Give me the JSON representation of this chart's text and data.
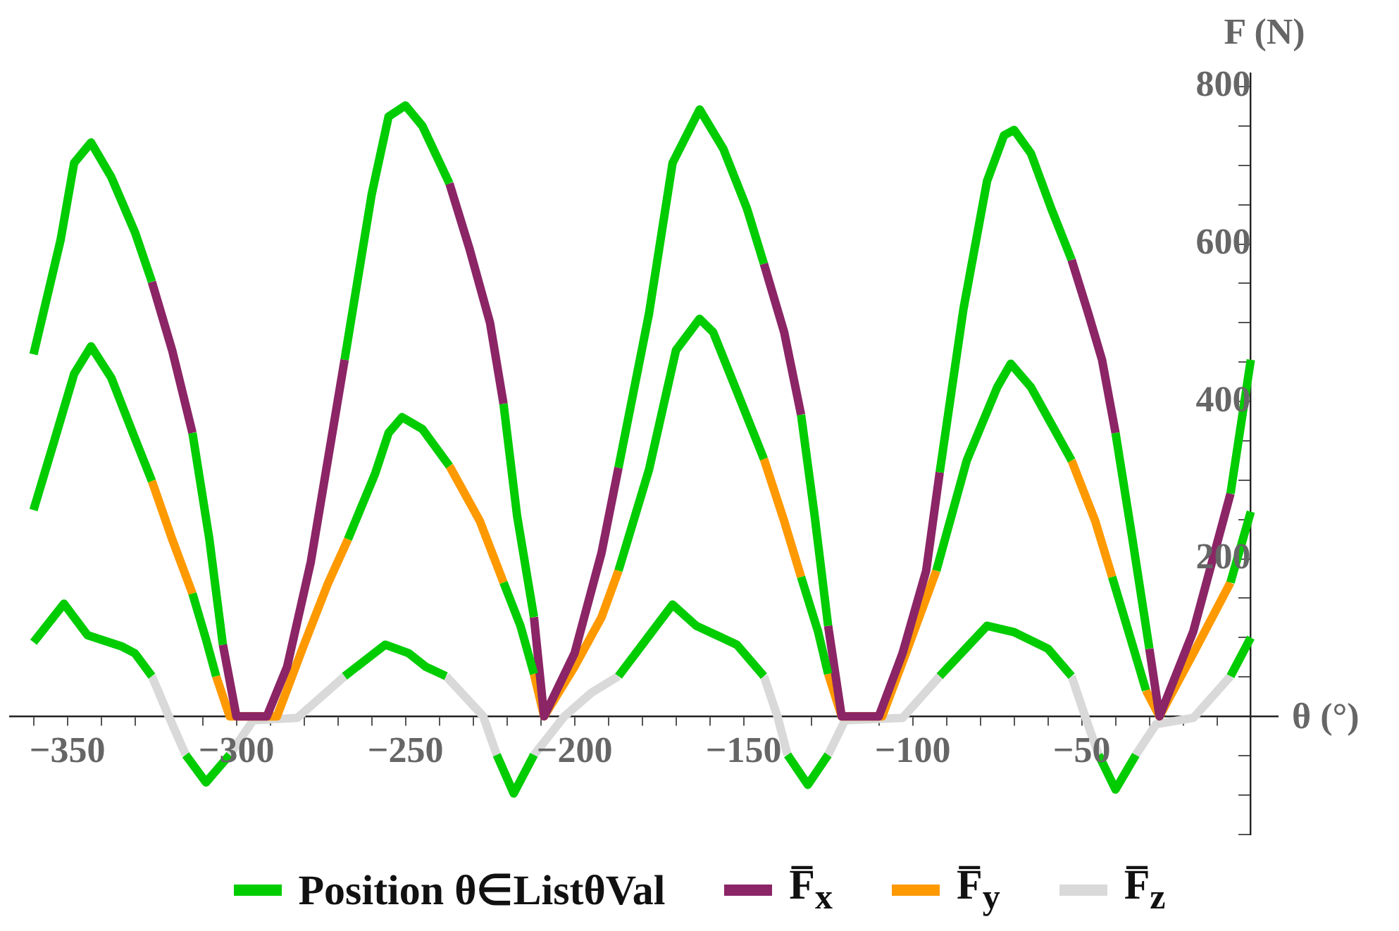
{
  "chart_data": {
    "type": "line",
    "xlabel": "θ (°)",
    "ylabel": "F (N)",
    "legend": "bottom",
    "marker": "none",
    "xlim": [
      -367,
      8
    ],
    "ylim": [
      -150,
      817
    ],
    "xticks": [
      {
        "value": -360,
        "label": null
      },
      {
        "value": -350,
        "label": "−350"
      },
      {
        "value": -340,
        "label": null
      },
      {
        "value": -330,
        "label": null
      },
      {
        "value": -320,
        "label": null
      },
      {
        "value": -310,
        "label": null
      },
      {
        "value": -300,
        "label": "−300"
      },
      {
        "value": -290,
        "label": null
      },
      {
        "value": -280,
        "label": null
      },
      {
        "value": -270,
        "label": null
      },
      {
        "value": -260,
        "label": null
      },
      {
        "value": -250,
        "label": "−250"
      },
      {
        "value": -240,
        "label": null
      },
      {
        "value": -230,
        "label": null
      },
      {
        "value": -220,
        "label": null
      },
      {
        "value": -210,
        "label": null
      },
      {
        "value": -200,
        "label": "−200"
      },
      {
        "value": -190,
        "label": null
      },
      {
        "value": -180,
        "label": null
      },
      {
        "value": -170,
        "label": null
      },
      {
        "value": -160,
        "label": null
      },
      {
        "value": -150,
        "label": "−150"
      },
      {
        "value": -140,
        "label": null
      },
      {
        "value": -130,
        "label": null
      },
      {
        "value": -120,
        "label": null
      },
      {
        "value": -110,
        "label": null
      },
      {
        "value": -100,
        "label": "−100"
      },
      {
        "value": -90,
        "label": null
      },
      {
        "value": -80,
        "label": null
      },
      {
        "value": -70,
        "label": null
      },
      {
        "value": -60,
        "label": null
      },
      {
        "value": -50,
        "label": "−50"
      },
      {
        "value": -40,
        "label": null
      },
      {
        "value": -30,
        "label": null
      },
      {
        "value": -20,
        "label": null
      },
      {
        "value": -10,
        "label": null
      }
    ],
    "yticks": [
      {
        "value": -150,
        "label": null
      },
      {
        "value": -100,
        "label": null
      },
      {
        "value": -50,
        "label": null
      },
      {
        "value": 50,
        "label": null
      },
      {
        "value": 100,
        "label": null
      },
      {
        "value": 150,
        "label": null
      },
      200,
      {
        "value": 250,
        "label": null
      },
      {
        "value": 300,
        "label": null
      },
      {
        "value": 350,
        "label": null
      },
      400,
      {
        "value": 450,
        "label": null
      },
      {
        "value": 500,
        "label": null
      },
      {
        "value": 550,
        "label": null
      },
      600,
      {
        "value": 650,
        "label": null
      },
      {
        "value": 700,
        "label": null
      },
      {
        "value": 750,
        "label": null
      },
      800
    ],
    "series": [
      {
        "name": "Position θ∈ListθVal",
        "color": "#00cc00",
        "x": [
          -360,
          -352,
          -348,
          -343,
          -337,
          -330,
          -325,
          null,
          -313,
          -308,
          -304,
          null,
          -268,
          -260,
          -255,
          -250,
          -245,
          -237,
          null,
          -221,
          -217,
          -212,
          null,
          -187,
          -178,
          -171,
          -163,
          -156,
          -149,
          -144,
          null,
          -133,
          -129,
          -125,
          null,
          -92,
          -85,
          -78,
          -73,
          -70,
          -65,
          -59,
          -53,
          null,
          -40,
          -35,
          -30,
          null,
          -6,
          0
        ],
        "values": [
          460,
          605,
          703,
          729,
          685,
          615,
          552,
          null,
          360,
          225,
          91,
          null,
          453,
          663,
          762,
          776,
          750,
          677,
          null,
          397,
          255,
          126,
          null,
          316,
          511,
          703,
          771,
          721,
          645,
          575,
          null,
          383,
          255,
          115,
          null,
          310,
          517,
          680,
          738,
          745,
          715,
          645,
          580,
          null,
          360,
          225,
          86,
          null,
          283,
          453
        ]
      },
      {
        "color": "#00cc00",
        "x": [
          -360,
          -354,
          -348,
          -343,
          -337,
          -330,
          -325,
          null,
          -313,
          -309,
          -306,
          null,
          -267,
          -259,
          -255,
          -251,
          -245,
          -237,
          null,
          -221,
          -216,
          -212,
          null,
          -187,
          -178,
          -170,
          -163,
          -159,
          -152,
          -144,
          null,
          -133,
          -128,
          -125,
          null,
          -93,
          -84,
          -75,
          -71,
          -65,
          -53,
          null,
          -41,
          -35,
          -31,
          null,
          -6,
          0
        ],
        "values": [
          262,
          348,
          435,
          470,
          430,
          353,
          299,
          null,
          156,
          98,
          51,
          null,
          225,
          308,
          360,
          380,
          365,
          318,
          null,
          170,
          115,
          54,
          null,
          185,
          313,
          465,
          505,
          488,
          413,
          327,
          null,
          177,
          108,
          54,
          null,
          185,
          325,
          418,
          448,
          418,
          325,
          null,
          177,
          91,
          33,
          null,
          170,
          260
        ]
      },
      {
        "color": "#00cc00",
        "x": [
          -360,
          -351,
          -344,
          -334,
          -330,
          -325,
          null,
          -315,
          -309,
          -302,
          null,
          -268,
          -256,
          -249,
          -244,
          -238,
          null,
          -223,
          -218,
          -212,
          null,
          -187,
          -171,
          -164,
          -152,
          -144,
          null,
          -137,
          -131,
          -125,
          null,
          -92,
          -78,
          -70,
          -60,
          -53,
          null,
          -45,
          -40,
          -34,
          null,
          -6,
          0
        ],
        "values": [
          94,
          143,
          103,
          89,
          80,
          51,
          null,
          -49,
          -84,
          -49,
          null,
          51,
          91,
          80,
          63,
          51,
          null,
          -49,
          -98,
          -49,
          null,
          51,
          142,
          115,
          91,
          51,
          null,
          -49,
          -87,
          -49,
          null,
          51,
          115,
          107,
          86,
          51,
          null,
          -49,
          -93,
          -49,
          null,
          51,
          100
        ]
      },
      {
        "name": "F̅$_{x}$",
        "color": "#8b2566",
        "x": [
          -325,
          -319,
          -313,
          null,
          -304,
          -300,
          -291,
          -285,
          -278,
          -268,
          null,
          -237,
          -231,
          -225,
          -221,
          null,
          -212,
          -209,
          -200,
          -192,
          -187,
          null,
          -144,
          -138,
          -133,
          null,
          -125,
          -121,
          -110,
          -103,
          -96,
          -92,
          null,
          -53,
          -48,
          -44,
          -40,
          null,
          -30,
          -27,
          -17,
          -6
        ],
        "values": [
          552,
          465,
          360,
          null,
          91,
          0,
          0,
          63,
          196,
          453,
          null,
          677,
          593,
          500,
          397,
          null,
          126,
          0,
          80,
          208,
          316,
          null,
          575,
          488,
          383,
          null,
          115,
          0,
          0,
          80,
          185,
          310,
          null,
          580,
          511,
          453,
          360,
          null,
          86,
          0,
          108,
          283
        ]
      },
      {
        "name": "F̅$_{y}$",
        "color": "#ff9900",
        "x": [
          -325,
          -319,
          -313,
          null,
          -306,
          -302,
          -288,
          -280,
          -273,
          -267,
          null,
          -237,
          -228,
          -221,
          null,
          -212,
          -209,
          -200,
          -192,
          -187,
          null,
          -144,
          -138,
          -133,
          null,
          -125,
          -121,
          -109,
          -102,
          -93,
          null,
          -53,
          -46,
          -41,
          null,
          -31,
          -27,
          -17,
          -6
        ],
        "values": [
          299,
          225,
          156,
          null,
          51,
          0,
          0,
          91,
          168,
          225,
          null,
          318,
          248,
          170,
          null,
          54,
          0,
          63,
          126,
          185,
          null,
          327,
          248,
          177,
          null,
          54,
          0,
          0,
          80,
          185,
          null,
          325,
          248,
          177,
          null,
          33,
          0,
          80,
          170
        ]
      },
      {
        "name": "F̅$_{z}$",
        "color": "#d9d9d9",
        "x": [
          -325,
          -320,
          -315,
          null,
          -302,
          -295,
          -282,
          -268,
          null,
          -238,
          -227,
          -223,
          null,
          -212,
          -203,
          -195,
          -187,
          null,
          -144,
          -140,
          -137,
          null,
          -125,
          -120,
          -103,
          -92,
          null,
          -53,
          -49,
          -45,
          null,
          -34,
          -28,
          -17,
          -6
        ],
        "values": [
          51,
          0,
          -49,
          null,
          -49,
          -5,
          -2,
          51,
          null,
          51,
          0,
          -49,
          null,
          -49,
          0,
          30,
          51,
          null,
          51,
          0,
          -49,
          null,
          -49,
          -5,
          -2,
          51,
          null,
          51,
          0,
          -49,
          null,
          -49,
          -10,
          -2,
          51
        ]
      }
    ]
  }
}
